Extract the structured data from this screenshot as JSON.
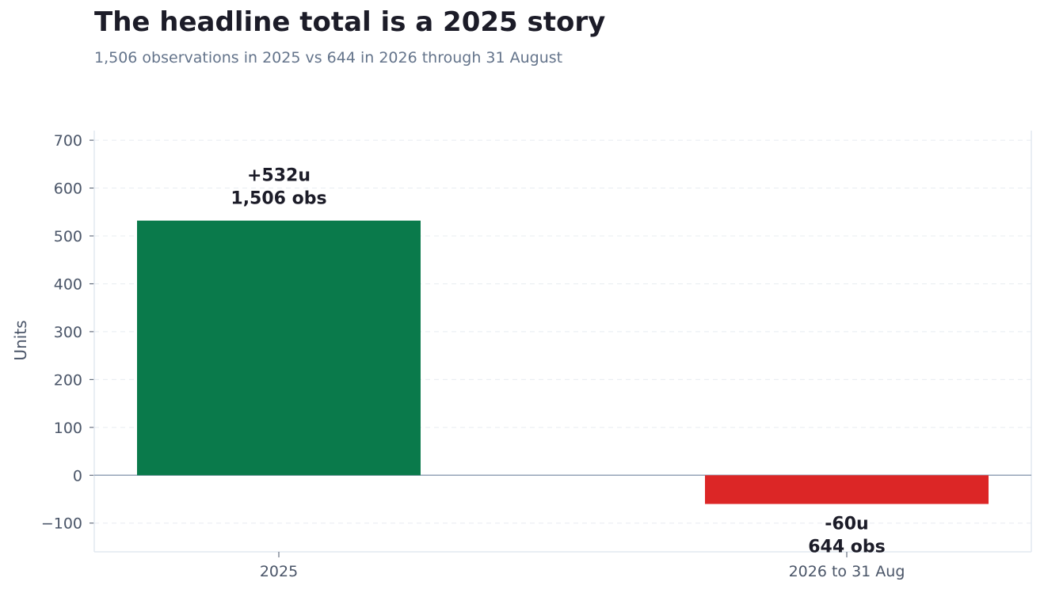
{
  "chart_data": {
    "type": "bar",
    "title": "The headline total is a 2025 story",
    "subtitle": "1,506 observations in 2025 vs 644 in 2026 through 31 August",
    "xlabel": "",
    "ylabel": "Units",
    "categories": [
      "2025",
      "2026 to 31 Aug"
    ],
    "values": [
      532,
      -60
    ],
    "bar_colors": [
      "#0a7a4b",
      "#dc2626"
    ],
    "data_labels": [
      [
        "+532u",
        "1,506 obs"
      ],
      [
        "-60u",
        "644 obs"
      ]
    ],
    "ylim": [
      -160,
      720
    ],
    "yticks": [
      -100,
      0,
      100,
      200,
      300,
      400,
      500,
      600,
      700
    ],
    "ytick_labels": [
      "−100",
      "0",
      "100",
      "200",
      "300",
      "400",
      "500",
      "600",
      "700"
    ],
    "grid": true,
    "legend": "none"
  }
}
